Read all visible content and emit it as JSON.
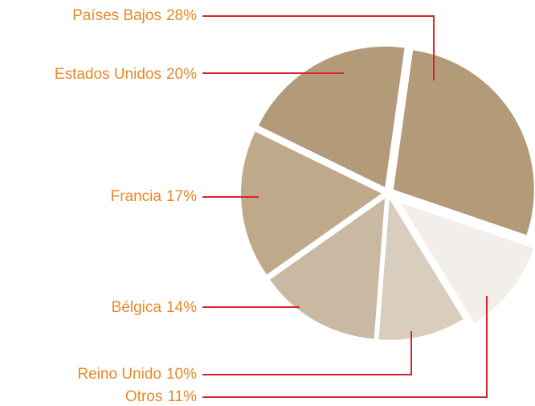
{
  "chart_data": {
    "type": "pie",
    "categories": [
      "Países Bajos",
      "Otros",
      "Reino Unido",
      "Bélgica",
      "Francia",
      "Estados Unidos"
    ],
    "values": [
      28,
      11,
      10,
      14,
      17,
      20
    ],
    "value_labels": [
      "28%",
      "11%",
      "10%",
      "14%",
      "17%",
      "20%"
    ],
    "colors": [
      "#b39b7a",
      "#f2efea",
      "#d9cdbd",
      "#c9b9a2",
      "#bfa98b",
      "#b39b7a"
    ]
  }
}
